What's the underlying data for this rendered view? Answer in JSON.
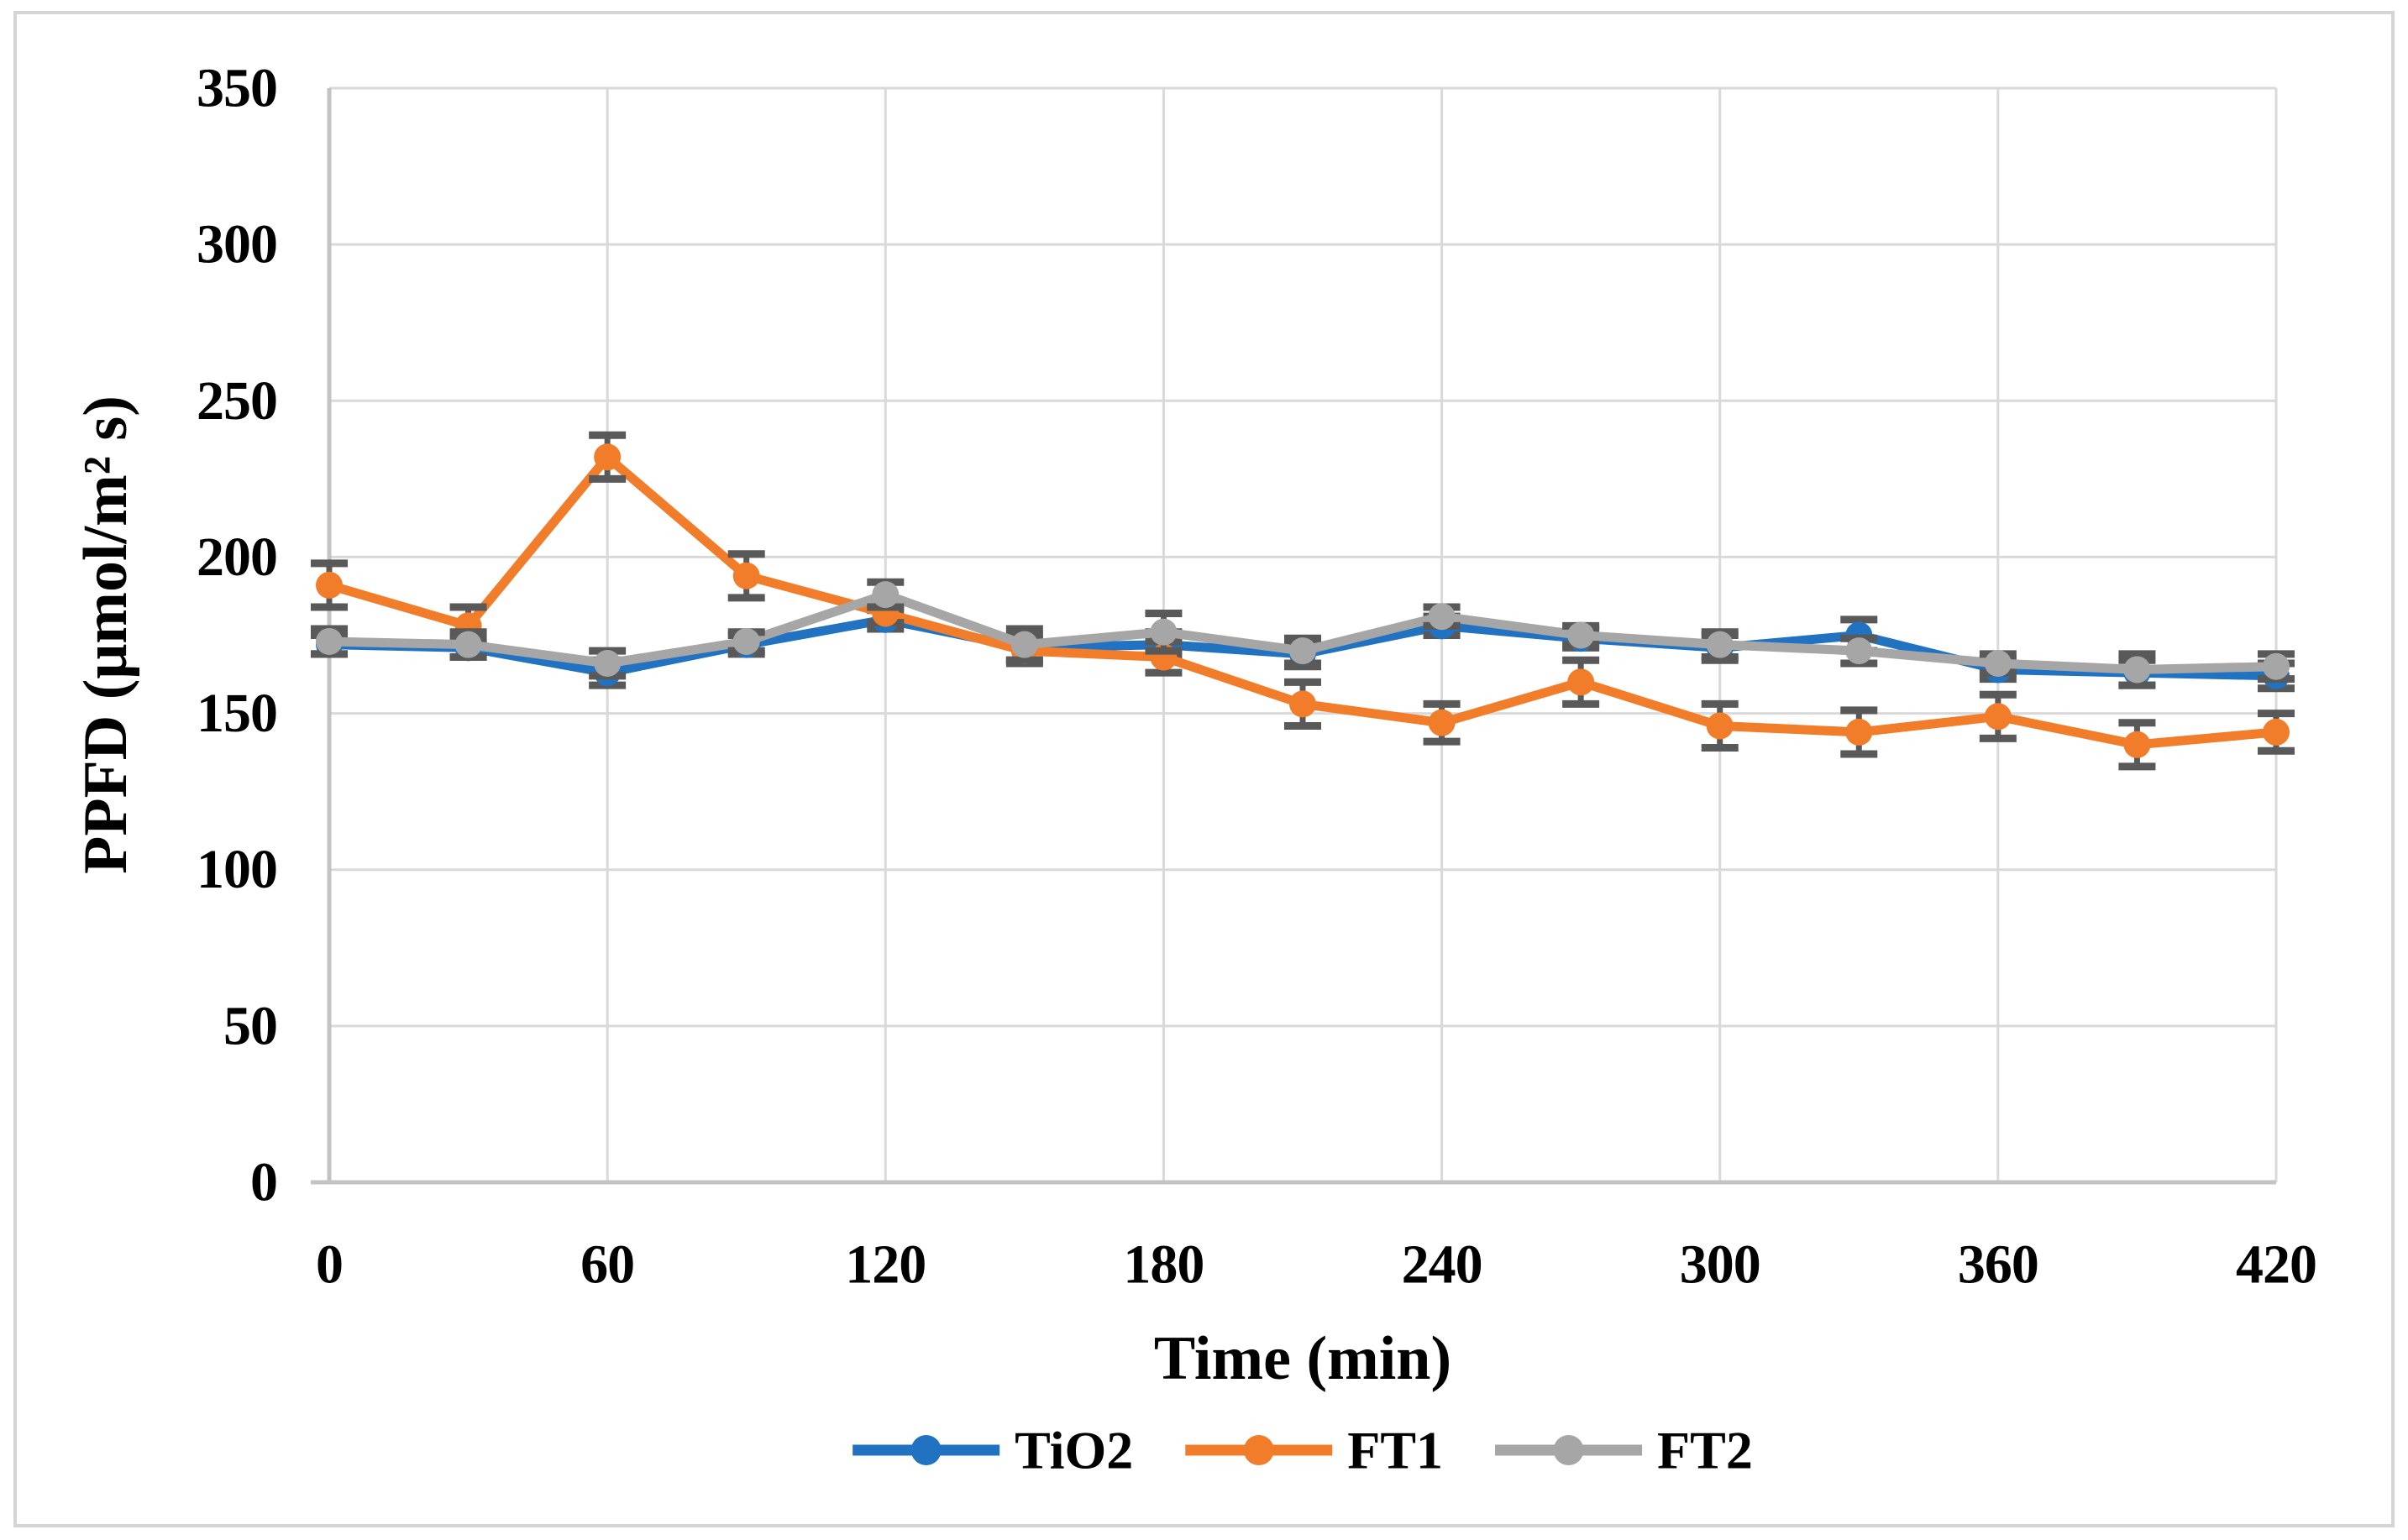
{
  "figure": {
    "background": "#ffffff",
    "border_color": "#d5d5d5"
  },
  "chart_data": {
    "type": "line",
    "title": "",
    "xlabel": "Time (min)",
    "ylabel": "PPFD (μmol/m² s)",
    "xlim": [
      0,
      420
    ],
    "ylim": [
      0,
      350
    ],
    "x_ticks": [
      0,
      60,
      120,
      180,
      240,
      300,
      360,
      420
    ],
    "y_ticks": [
      0,
      50,
      100,
      150,
      200,
      250,
      300,
      350
    ],
    "grid": true,
    "legend_position": "bottom-center",
    "x": [
      0,
      30,
      60,
      90,
      120,
      150,
      180,
      210,
      240,
      270,
      300,
      330,
      360,
      390,
      420
    ],
    "series": [
      {
        "name": "TiO2",
        "color": "#2173c2",
        "values": [
          172,
          171,
          163,
          172,
          180,
          171,
          172,
          169,
          178,
          174,
          171,
          175,
          164,
          163,
          162
        ],
        "errors": [
          3,
          3,
          4,
          3,
          3,
          4,
          4,
          4,
          3,
          3,
          4,
          5,
          3,
          4,
          4
        ]
      },
      {
        "name": "FT1",
        "color": "#f17d2a",
        "values": [
          191,
          178,
          232,
          194,
          182,
          170,
          168,
          153,
          147,
          160,
          146,
          144,
          149,
          140,
          144
        ],
        "errors": [
          7,
          6,
          7,
          7,
          3,
          4,
          5,
          7,
          6,
          7,
          7,
          7,
          7,
          7,
          6
        ]
      },
      {
        "name": "FT2",
        "color": "#a6a6a6",
        "values": [
          173,
          172,
          166,
          173,
          188,
          172,
          176,
          170,
          181,
          175,
          172,
          170,
          166,
          164,
          165
        ],
        "errors": [
          4,
          4,
          4,
          3,
          4,
          5,
          6,
          4,
          3,
          3,
          4,
          4,
          3,
          5,
          4
        ]
      }
    ],
    "styles": {
      "gridline_color": "#d9d9d9",
      "axis_color": "#c3c3c3",
      "error_bar_color": "#595959",
      "tick_label_color": "#000000"
    }
  }
}
